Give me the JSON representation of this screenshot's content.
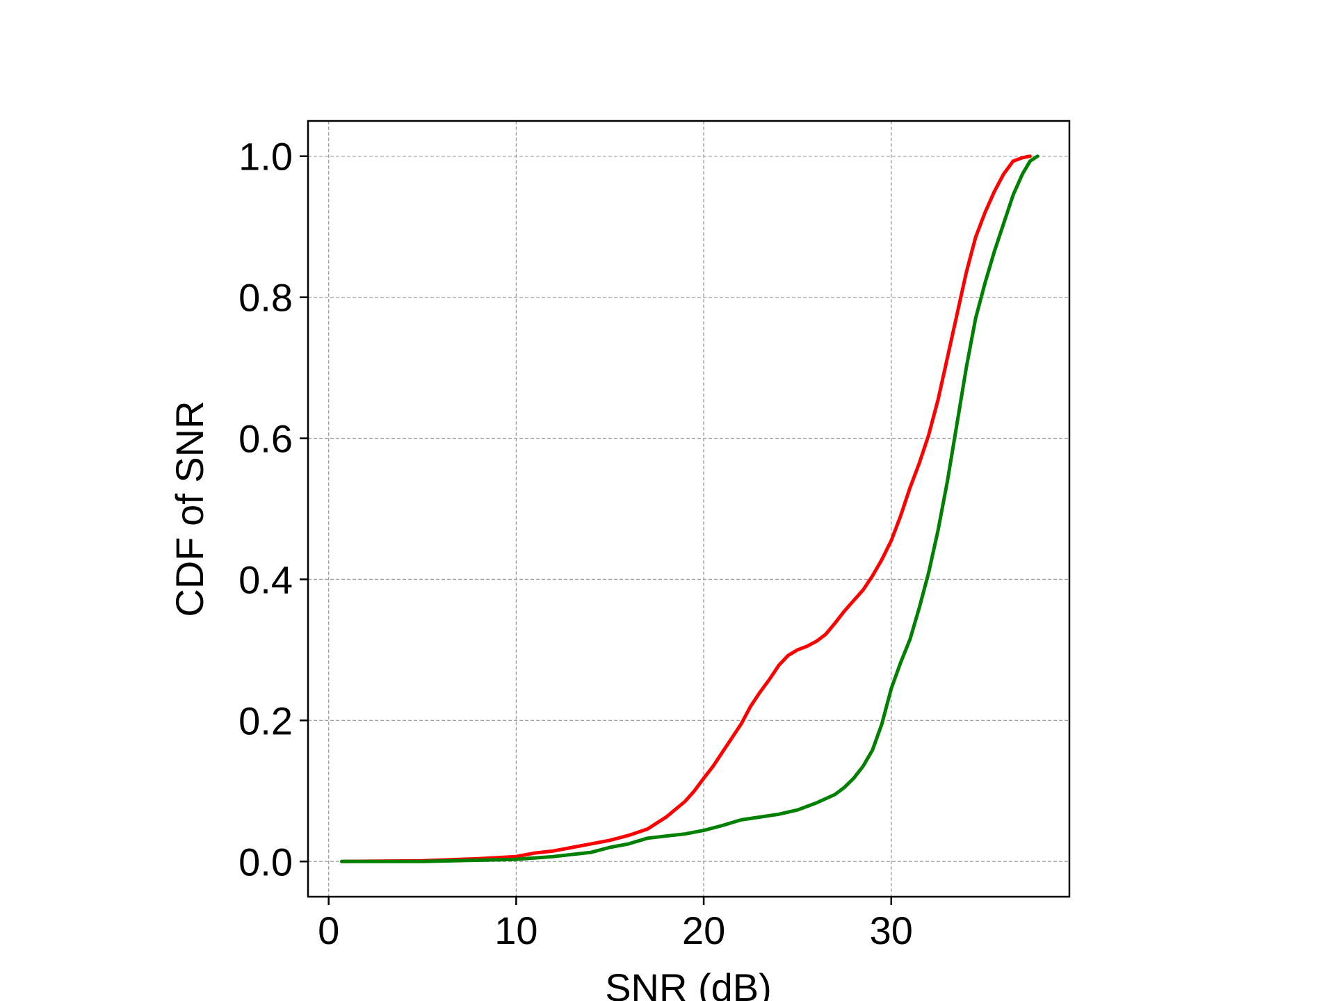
{
  "chart_data": {
    "type": "line",
    "xlabel": "SNR (dB)",
    "ylabel": "CDF of SNR",
    "xlim": [
      -1.1,
      39.5
    ],
    "ylim": [
      -0.05,
      1.05
    ],
    "xticks": [
      0,
      10,
      20,
      30
    ],
    "xtick_labels": [
      "0",
      "10",
      "20",
      "30"
    ],
    "yticks": [
      0.0,
      0.2,
      0.4,
      0.6,
      0.8,
      1.0
    ],
    "ytick_labels": [
      "0.0",
      "0.2",
      "0.4",
      "0.6",
      "0.8",
      "1.0"
    ],
    "grid": true,
    "legend": "none",
    "series": [
      {
        "color": "#ff0000",
        "points": [
          [
            0.7,
            0.0
          ],
          [
            5,
            0.001
          ],
          [
            8,
            0.004
          ],
          [
            10,
            0.007
          ],
          [
            11,
            0.012
          ],
          [
            12,
            0.015
          ],
          [
            13,
            0.02
          ],
          [
            14,
            0.025
          ],
          [
            15,
            0.03
          ],
          [
            16,
            0.037
          ],
          [
            17,
            0.046
          ],
          [
            18,
            0.063
          ],
          [
            19,
            0.085
          ],
          [
            19.5,
            0.1
          ],
          [
            20,
            0.118
          ],
          [
            20.5,
            0.135
          ],
          [
            21,
            0.155
          ],
          [
            21.5,
            0.175
          ],
          [
            22,
            0.195
          ],
          [
            22.5,
            0.22
          ],
          [
            23,
            0.24
          ],
          [
            23.5,
            0.258
          ],
          [
            24,
            0.278
          ],
          [
            24.5,
            0.292
          ],
          [
            25,
            0.3
          ],
          [
            25.5,
            0.305
          ],
          [
            26,
            0.312
          ],
          [
            26.5,
            0.322
          ],
          [
            27,
            0.338
          ],
          [
            27.5,
            0.355
          ],
          [
            28,
            0.37
          ],
          [
            28.5,
            0.385
          ],
          [
            29,
            0.405
          ],
          [
            29.5,
            0.428
          ],
          [
            30,
            0.455
          ],
          [
            30.5,
            0.49
          ],
          [
            31,
            0.53
          ],
          [
            31.5,
            0.565
          ],
          [
            32,
            0.605
          ],
          [
            32.5,
            0.655
          ],
          [
            33,
            0.715
          ],
          [
            33.5,
            0.775
          ],
          [
            34,
            0.835
          ],
          [
            34.5,
            0.885
          ],
          [
            35,
            0.92
          ],
          [
            35.5,
            0.95
          ],
          [
            36,
            0.975
          ],
          [
            36.5,
            0.993
          ],
          [
            37,
            0.998
          ],
          [
            37.4,
            1.0
          ]
        ]
      },
      {
        "color": "#008000",
        "points": [
          [
            0.7,
            0.0
          ],
          [
            5,
            0.0
          ],
          [
            10,
            0.003
          ],
          [
            12,
            0.007
          ],
          [
            14,
            0.013
          ],
          [
            15,
            0.02
          ],
          [
            16,
            0.025
          ],
          [
            17,
            0.033
          ],
          [
            18,
            0.036
          ],
          [
            19,
            0.039
          ],
          [
            20,
            0.044
          ],
          [
            21,
            0.051
          ],
          [
            22,
            0.059
          ],
          [
            23,
            0.063
          ],
          [
            24,
            0.067
          ],
          [
            25,
            0.073
          ],
          [
            26,
            0.083
          ],
          [
            27,
            0.095
          ],
          [
            27.5,
            0.105
          ],
          [
            28,
            0.118
          ],
          [
            28.5,
            0.135
          ],
          [
            29,
            0.158
          ],
          [
            29.5,
            0.195
          ],
          [
            30,
            0.245
          ],
          [
            30.5,
            0.282
          ],
          [
            31,
            0.315
          ],
          [
            31.5,
            0.36
          ],
          [
            32,
            0.41
          ],
          [
            32.5,
            0.47
          ],
          [
            33,
            0.54
          ],
          [
            33.5,
            0.62
          ],
          [
            34,
            0.7
          ],
          [
            34.5,
            0.77
          ],
          [
            35,
            0.82
          ],
          [
            35.5,
            0.865
          ],
          [
            36,
            0.905
          ],
          [
            36.5,
            0.945
          ],
          [
            37,
            0.975
          ],
          [
            37.4,
            0.993
          ],
          [
            37.8,
            1.0
          ]
        ]
      }
    ]
  }
}
